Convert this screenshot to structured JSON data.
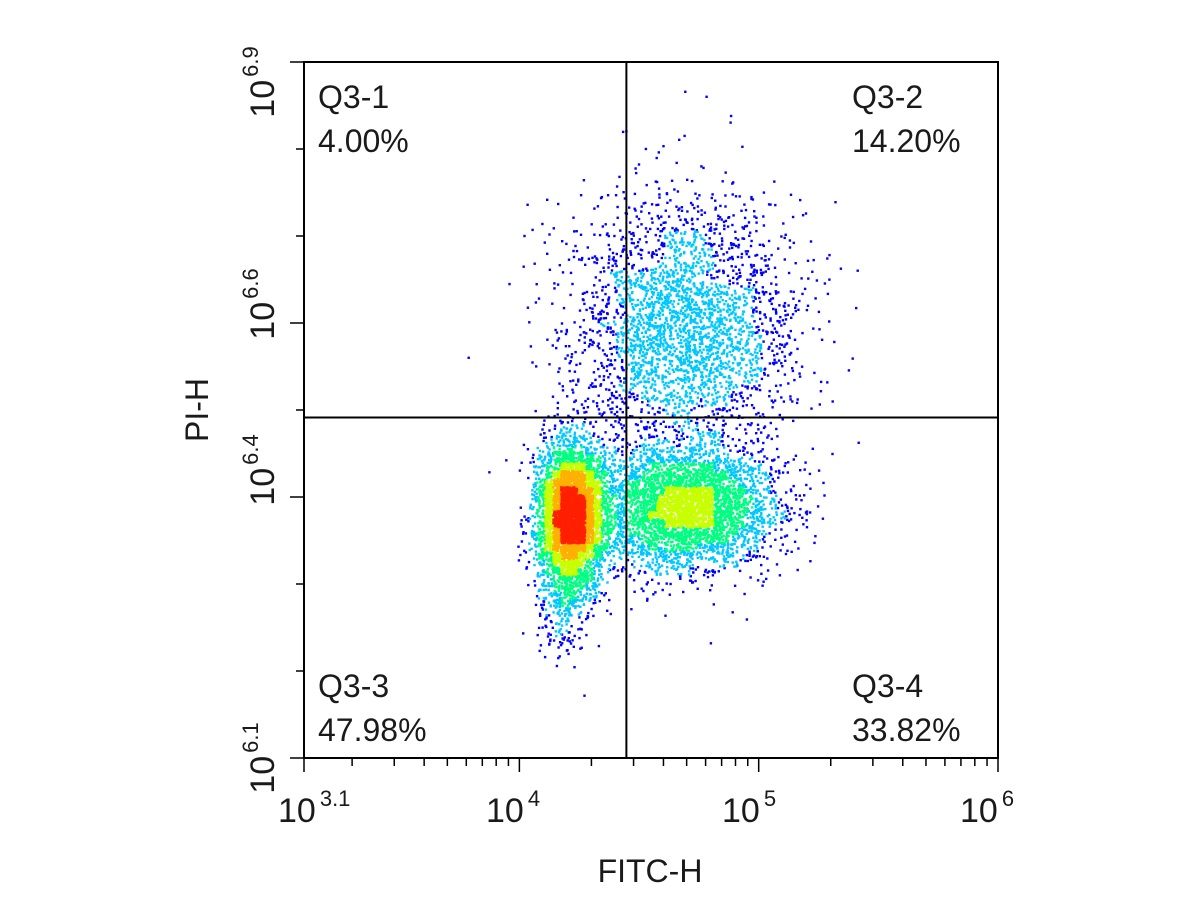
{
  "chart_data": {
    "type": "scatter",
    "title": "",
    "xlabel": "FITC-H",
    "ylabel": "PI-H",
    "x_scale": "log",
    "y_scale": "log",
    "xlim": [
      1258.9,
      1000000
    ],
    "ylim": [
      1258925,
      7943282
    ],
    "grid": false,
    "legend": "none",
    "x_ticks": [
      {
        "value": 1258.9,
        "base": "10",
        "exp": "3.1"
      },
      {
        "value": 10000,
        "base": "10",
        "exp": "4"
      },
      {
        "value": 100000,
        "base": "10",
        "exp": "5"
      },
      {
        "value": 1000000,
        "base": "10",
        "exp": "6"
      }
    ],
    "y_ticks": [
      {
        "value": 1258925,
        "base": "10",
        "exp": "6.1"
      },
      {
        "value": 2511886,
        "base": "10",
        "exp": "6.4"
      },
      {
        "value": 3981072,
        "base": "10",
        "exp": "6.6"
      },
      {
        "value": 7943282,
        "base": "10",
        "exp": "6.9"
      }
    ],
    "gate": {
      "x": 28000,
      "y": 3100000
    },
    "quadrants": [
      {
        "name": "Q3-1",
        "percent": "4.00%",
        "position": "top-left"
      },
      {
        "name": "Q3-2",
        "percent": "14.20%",
        "position": "top-right"
      },
      {
        "name": "Q3-3",
        "percent": "47.98%",
        "position": "bottom-left"
      },
      {
        "name": "Q3-4",
        "percent": "33.82%",
        "position": "bottom-right"
      }
    ],
    "populations": [
      {
        "name": "",
        "count": 4200,
        "x_log10_mean": 4.22,
        "y_log10_mean": 6.385,
        "x_log10_sd": 0.07,
        "y_log10_sd": 0.04
      },
      {
        "name": "",
        "count": 4200,
        "x_log10_mean": 4.68,
        "y_log10_mean": 6.39,
        "x_log10_sd": 0.19,
        "y_log10_sd": 0.035
      },
      {
        "name": "",
        "count": 3000,
        "x_log10_mean": 4.68,
        "y_log10_mean": 6.6,
        "x_log10_sd": 0.23,
        "y_log10_sd": 0.07
      },
      {
        "name": "",
        "count": 900,
        "x_log10_mean": 4.18,
        "y_log10_mean": 6.33,
        "x_log10_sd": 0.06,
        "y_log10_sd": 0.05
      }
    ],
    "density_colors": [
      "#0000ff",
      "#00c8ff",
      "#00ff80",
      "#c8ff00",
      "#ffb000",
      "#ff2000"
    ]
  }
}
